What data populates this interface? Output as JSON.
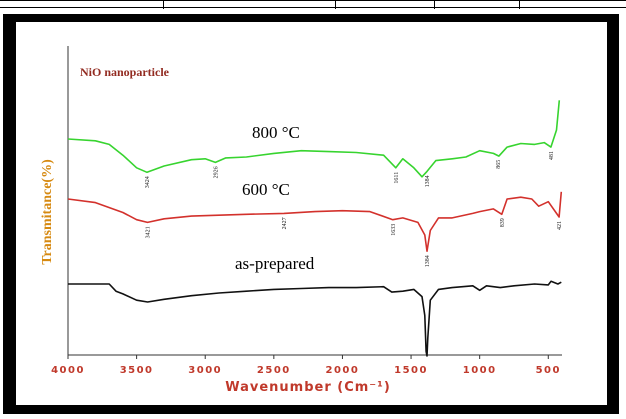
{
  "chart_data": {
    "type": "line",
    "title": "NiO nanoparticle",
    "xlabel": "Wavenumber (Cm⁻¹)",
    "ylabel": "Transmitance(%)",
    "xlim": [
      4000,
      400
    ],
    "x_reversed": true,
    "x_ticks": [
      "4000",
      "3500",
      "3000",
      "2500",
      "2000",
      "1500",
      "1000",
      "500"
    ],
    "grid": false,
    "series": [
      {
        "name": "800 °C",
        "color": "#37d42f",
        "offset_rank": 0,
        "x": [
          4000,
          3800,
          3700,
          3600,
          3500,
          3424,
          3300,
          3100,
          3000,
          2926,
          2850,
          2700,
          2500,
          2300,
          2100,
          1900,
          1700,
          1611,
          1560,
          1480,
          1420,
          1384,
          1320,
          1200,
          1100,
          1000,
          900,
          860,
          800,
          700,
          600,
          530,
          481,
          440,
          420
        ],
        "values": [
          0.0,
          -0.2,
          -0.6,
          -1.8,
          -3.2,
          -3.7,
          -3.0,
          -2.3,
          -2.2,
          -2.6,
          -2.1,
          -2.0,
          -1.6,
          -1.3,
          -1.4,
          -1.5,
          -1.8,
          -3.2,
          -2.2,
          -3.2,
          -4.2,
          -3.6,
          -2.4,
          -2.2,
          -2.0,
          -1.3,
          -1.6,
          -1.9,
          -0.9,
          -0.5,
          -0.6,
          -0.4,
          -0.9,
          1.0,
          4.3
        ],
        "peaks": [
          3424,
          2926,
          1611,
          1384,
          865,
          481
        ]
      },
      {
        "name": "600 °C",
        "color": "#d3312c",
        "offset_rank": 1,
        "x": [
          4000,
          3800,
          3600,
          3500,
          3421,
          3300,
          3100,
          2900,
          2700,
          2427,
          2200,
          2000,
          1800,
          1633,
          1560,
          1450,
          1400,
          1384,
          1360,
          1300,
          1200,
          1050,
          1000,
          900,
          839,
          800,
          700,
          620,
          570,
          500,
          421,
          405
        ],
        "values": [
          0.0,
          -0.4,
          -1.5,
          -2.3,
          -2.6,
          -2.2,
          -1.9,
          -1.8,
          -1.7,
          -1.6,
          -1.4,
          -1.3,
          -1.4,
          -2.3,
          -2.1,
          -2.6,
          -4.0,
          -5.8,
          -3.5,
          -2.1,
          -2.1,
          -1.6,
          -1.4,
          -1.1,
          -1.7,
          0.0,
          0.2,
          0.0,
          -0.8,
          -0.3,
          -2.0,
          0.8
        ],
        "peaks": [
          3421,
          2427,
          1633,
          1384,
          839,
          421
        ]
      },
      {
        "name": "as-prepared",
        "color": "#111111",
        "offset_rank": 2,
        "x": [
          4000,
          3700,
          3650,
          3600,
          3500,
          3420,
          3300,
          3100,
          2900,
          2700,
          2500,
          2300,
          2100,
          1900,
          1700,
          1640,
          1560,
          1480,
          1420,
          1400,
          1390,
          1384,
          1378,
          1360,
          1300,
          1200,
          1050,
          1000,
          950,
          850,
          750,
          600,
          500,
          480,
          430,
          405
        ],
        "values": [
          0.0,
          0.0,
          -0.8,
          -1.1,
          -1.8,
          -2.0,
          -1.7,
          -1.3,
          -1.0,
          -0.8,
          -0.6,
          -0.5,
          -0.4,
          -0.4,
          -0.3,
          -0.9,
          -0.8,
          -0.6,
          -1.4,
          -3.5,
          -7.5,
          -8.0,
          -6.0,
          -1.8,
          -0.6,
          -0.4,
          -0.2,
          -0.7,
          -0.2,
          -0.4,
          -0.2,
          0.0,
          -0.1,
          0.3,
          0.0,
          0.2
        ]
      }
    ]
  }
}
